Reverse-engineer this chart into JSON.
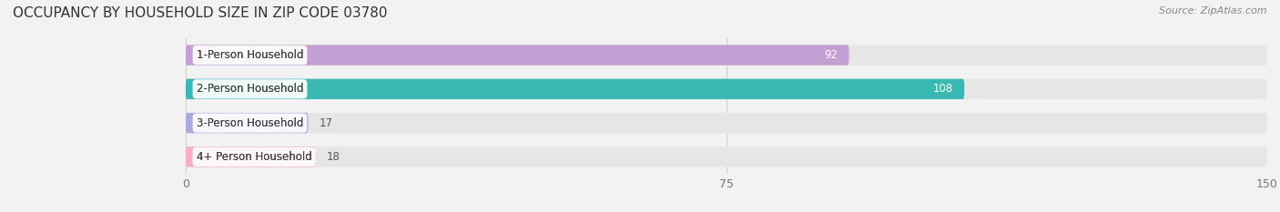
{
  "title": "OCCUPANCY BY HOUSEHOLD SIZE IN ZIP CODE 03780",
  "source": "Source: ZipAtlas.com",
  "categories": [
    "1-Person Household",
    "2-Person Household",
    "3-Person Household",
    "4+ Person Household"
  ],
  "values": [
    92,
    108,
    17,
    18
  ],
  "bar_colors": [
    "#c49fd4",
    "#3ab8b3",
    "#aaaade",
    "#f5afc0"
  ],
  "label_bg_colors": [
    "#f0e4f7",
    "#dff4f3",
    "#e4e4f7",
    "#fde4ec"
  ],
  "xlim": [
    0,
    150
  ],
  "xticks": [
    0,
    75,
    150
  ],
  "bar_height": 0.6,
  "figsize": [
    14.06,
    2.33
  ],
  "dpi": 100,
  "title_fontsize": 11,
  "source_fontsize": 8,
  "label_fontsize": 8.5,
  "value_fontsize": 8.5,
  "tick_fontsize": 9,
  "bg_color": "#f2f2f2",
  "bar_bg_color": "#e6e6e6",
  "row_bg_color": "#ebebeb"
}
